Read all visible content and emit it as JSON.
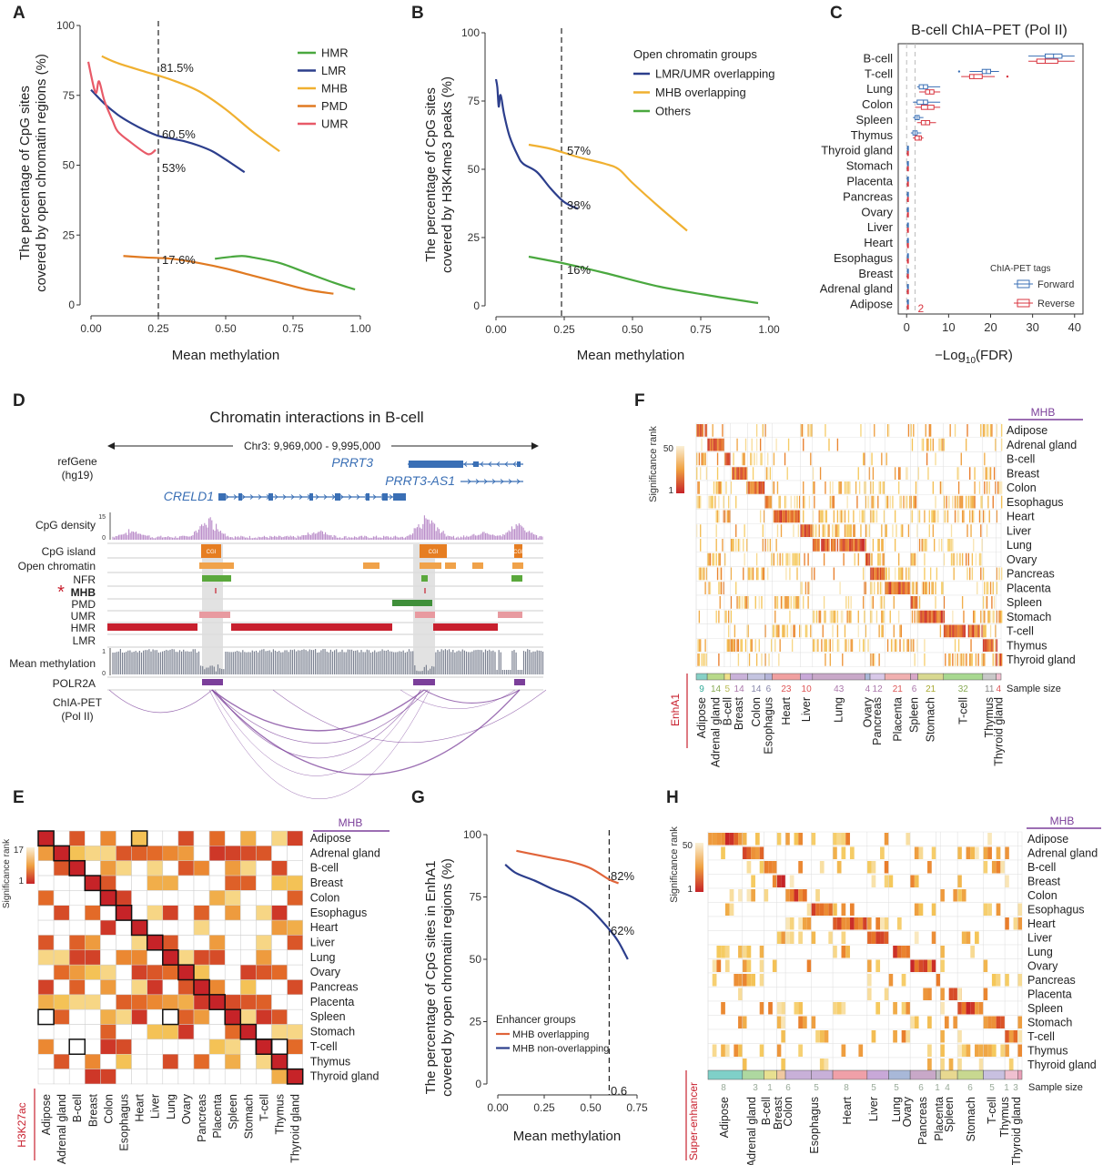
{
  "panels": {
    "A": "A",
    "B": "B",
    "C": "C",
    "D": "D",
    "E": "E",
    "F": "F",
    "G": "G",
    "H": "H"
  },
  "colors": {
    "HMR": "#4aa83f",
    "LMR": "#2c3e8c",
    "MHB": "#f0b030",
    "PMD": "#e07a22",
    "UMR": "#e85a68",
    "forward": "#3a6fb5",
    "reverse": "#d8343f",
    "purple": "#7b3f9a",
    "hmr_track": "#c8202e",
    "nfr": "#5aa83c",
    "pmd_track": "#3f8f3a",
    "umr_track": "#e89aa0",
    "cgi": "#e67e22",
    "density": "#b98ac8",
    "meth": "#7a8090"
  },
  "chart_data": [
    {
      "id": "A",
      "type": "line",
      "xlabel": "Mean methylation",
      "ylabel": "The percentage of CpG sites covered by open chromatin regions (%)",
      "xlim": [
        0,
        1
      ],
      "ylim": [
        0,
        100
      ],
      "xticks": [
        "0.00",
        "0.25",
        "0.50",
        "0.75",
        "1.00"
      ],
      "yticks": [
        "0",
        "25",
        "50",
        "75",
        "100"
      ],
      "vline": 0.25,
      "annotations": [
        "81.5%",
        "60.5%",
        "53%",
        "17.6%"
      ],
      "legend": [
        "HMR",
        "LMR",
        "MHB",
        "PMD",
        "UMR"
      ],
      "series": [
        {
          "name": "MHB",
          "x": [
            0.04,
            0.1,
            0.2,
            0.3,
            0.4,
            0.5,
            0.6,
            0.7
          ],
          "y": [
            89,
            86.5,
            83.5,
            80.5,
            76.5,
            70,
            62,
            55
          ]
        },
        {
          "name": "LMR",
          "x": [
            0,
            0.05,
            0.1,
            0.15,
            0.2,
            0.25,
            0.3,
            0.35,
            0.4,
            0.45,
            0.5,
            0.57
          ],
          "y": [
            77,
            72,
            68,
            65,
            62.5,
            60.5,
            59.5,
            58.5,
            57,
            55,
            52,
            47.5
          ]
        },
        {
          "name": "UMR",
          "x": [
            -0.01,
            0.01,
            0.02,
            0.03,
            0.05,
            0.08,
            0.1,
            0.15,
            0.2,
            0.22,
            0.24
          ],
          "y": [
            87,
            78,
            76,
            80,
            73,
            66,
            62,
            58,
            54.5,
            54,
            55.5
          ]
        },
        {
          "name": "PMD",
          "x": [
            0.12,
            0.2,
            0.25,
            0.3,
            0.4,
            0.5,
            0.6,
            0.7,
            0.8,
            0.9
          ],
          "y": [
            17.5,
            17,
            16.8,
            16.5,
            15,
            13,
            10.5,
            8,
            5.5,
            4
          ]
        },
        {
          "name": "HMR",
          "x": [
            0.46,
            0.5,
            0.56,
            0.6,
            0.7,
            0.8,
            0.9,
            0.98
          ],
          "y": [
            16.5,
            17,
            17.5,
            17,
            15,
            11.5,
            8,
            5.5
          ]
        }
      ]
    },
    {
      "id": "B",
      "type": "line",
      "xlabel": "Mean methylation",
      "ylabel": "The percentage of CpG sites covered by H3K4me3 peaks (%)",
      "xlim": [
        0,
        1
      ],
      "ylim": [
        0,
        100
      ],
      "xticks": [
        "0.00",
        "0.25",
        "0.50",
        "0.75",
        "1.00"
      ],
      "yticks": [
        "0",
        "25",
        "50",
        "75",
        "100"
      ],
      "vline": 0.24,
      "legend_title": "Open chromatin groups",
      "legend": [
        "LMR/UMR overlapping",
        "MHB overlapping",
        "Others"
      ],
      "annotations": [
        "57%",
        "38%",
        "16%"
      ],
      "series": [
        {
          "name": "LMR/UMR overlapping",
          "x": [
            0,
            0.005,
            0.01,
            0.015,
            0.02,
            0.03,
            0.05,
            0.08,
            0.1,
            0.15,
            0.2,
            0.25,
            0.3
          ],
          "y": [
            83,
            80,
            73,
            77,
            76,
            70,
            62,
            55,
            52,
            49,
            43,
            38,
            35.5
          ]
        },
        {
          "name": "MHB overlapping",
          "x": [
            0.12,
            0.2,
            0.3,
            0.4,
            0.45,
            0.5,
            0.6,
            0.7
          ],
          "y": [
            59,
            57.5,
            54.5,
            52,
            50,
            45,
            36,
            27.5
          ]
        },
        {
          "name": "Others",
          "x": [
            0.12,
            0.25,
            0.4,
            0.6,
            0.8,
            0.96
          ],
          "y": [
            18,
            15.5,
            12,
            7,
            3.5,
            1
          ]
        }
      ]
    },
    {
      "id": "C",
      "type": "box",
      "title": "B-cell ChIA−PET (Pol II)",
      "xlabel": "−Log10(FDR)",
      "xlim": [
        -2,
        42
      ],
      "xticks": [
        "0",
        "10",
        "20",
        "30",
        "40"
      ],
      "threshold_label": "2",
      "legend_title": "ChIA-PET tags",
      "legend": [
        "Forward",
        "Reverse"
      ],
      "categories": [
        "B-cell",
        "T-cell",
        "Lung",
        "Colon",
        "Spleen",
        "Thymus",
        "Thyroid gland",
        "Stomach",
        "Placenta",
        "Pancreas",
        "Ovary",
        "Liver",
        "Heart",
        "Esophagus",
        "Breast",
        "Adrenal gland",
        "Adipose"
      ],
      "forward": [
        [
          29,
          33,
          35,
          37,
          40
        ],
        [
          15,
          18,
          19,
          20,
          22
        ],
        [
          2.5,
          3,
          4,
          5,
          8
        ],
        [
          1.5,
          2.5,
          4,
          5,
          8
        ],
        [
          1.5,
          2,
          2.5,
          3,
          4
        ],
        [
          1,
          1.5,
          2,
          2.5,
          3.5
        ],
        [
          0,
          0.2,
          0.3,
          0.4,
          0.5
        ],
        [
          0,
          0.2,
          0.3,
          0.4,
          0.5
        ],
        [
          0,
          0.2,
          0.3,
          0.4,
          0.5
        ],
        [
          0,
          0.2,
          0.3,
          0.4,
          0.5
        ],
        [
          0,
          0.2,
          0.3,
          0.4,
          0.5
        ],
        [
          0,
          0.2,
          0.3,
          0.4,
          0.5
        ],
        [
          0,
          0.2,
          0.3,
          0.4,
          0.5
        ],
        [
          0,
          0.2,
          0.3,
          0.4,
          0.5
        ],
        [
          0,
          0.2,
          0.3,
          0.4,
          0.5
        ],
        [
          0,
          0.2,
          0.3,
          0.4,
          0.5
        ],
        [
          0,
          0.2,
          0.3,
          0.4,
          0.5
        ]
      ],
      "reverse": [
        [
          29,
          31,
          33,
          36,
          40
        ],
        [
          13,
          15,
          16,
          18,
          21
        ],
        [
          3,
          4.5,
          5.5,
          6.5,
          8
        ],
        [
          2,
          3.5,
          5,
          6.5,
          8
        ],
        [
          2.5,
          3.5,
          4.5,
          5.5,
          7
        ],
        [
          1.5,
          2,
          3,
          3.5,
          4
        ],
        [
          0,
          0.2,
          0.3,
          0.4,
          0.5
        ],
        [
          0,
          0.2,
          0.3,
          0.4,
          0.5
        ],
        [
          0,
          0.2,
          0.3,
          0.4,
          0.5
        ],
        [
          0,
          0.2,
          0.3,
          0.4,
          0.5
        ],
        [
          0,
          0.2,
          0.3,
          0.4,
          0.5
        ],
        [
          0,
          0.2,
          0.3,
          0.4,
          0.5
        ],
        [
          0,
          0.2,
          0.3,
          0.4,
          0.5
        ],
        [
          0,
          0.2,
          0.3,
          0.4,
          0.5
        ],
        [
          0,
          0.2,
          0.3,
          0.4,
          0.5
        ],
        [
          0,
          0.2,
          0.3,
          0.4,
          0.5
        ],
        [
          0,
          0.2,
          0.3,
          0.4,
          0.5
        ]
      ]
    },
    {
      "id": "G",
      "type": "line",
      "xlabel": "Mean methylation",
      "ylabel": "The percentage of CpG sites in EnhA1 covered by open chromatin regions (%)",
      "xlim": [
        0,
        0.75
      ],
      "ylim": [
        0,
        100
      ],
      "xticks": [
        "0.00",
        "0.25",
        "0.50",
        "0.75"
      ],
      "yticks": [
        "0",
        "25",
        "50",
        "75",
        "100"
      ],
      "vline": 0.6,
      "vline_label": "0.6",
      "legend_title": "Enhancer groups",
      "legend": [
        "MHB overlapping",
        "MHB non-overlapping"
      ],
      "annotations": [
        "82%",
        "62%"
      ],
      "series": [
        {
          "name": "MHB overlapping",
          "x": [
            0.1,
            0.2,
            0.3,
            0.4,
            0.5,
            0.6,
            0.65
          ],
          "y": [
            93.5,
            92,
            90.5,
            89,
            86.5,
            82,
            80.5
          ]
        },
        {
          "name": "MHB non-overlapping",
          "x": [
            0.04,
            0.1,
            0.2,
            0.3,
            0.4,
            0.5,
            0.6,
            0.65,
            0.7
          ],
          "y": [
            88,
            84.5,
            81.5,
            78,
            75,
            70,
            62,
            57,
            50
          ]
        }
      ]
    }
  ],
  "panel_D": {
    "title": "Chromatin interactions in B-cell",
    "coords": "Chr3: 9,969,000 - 9,995,000",
    "refgene": "refGene",
    "assembly": "(hg19)",
    "genes": [
      "PRRT3",
      "PRRT3-AS1",
      "CRELD1"
    ],
    "density_label": "CpG density",
    "density_max": "15",
    "density_min": "0",
    "tracks": [
      "CpG island",
      "Open chromatin",
      "NFR",
      "MHB",
      "PMD",
      "UMR",
      "HMR",
      "LMR"
    ],
    "cgi": "CGI",
    "star": "*",
    "meth_label": "Mean methylation",
    "meth_max": "1",
    "meth_min": "0",
    "polr2a": "POLR2A",
    "chia": "ChIA-PET",
    "chia2": "(Pol II)"
  },
  "heatmaps": {
    "rows": [
      "Adipose",
      "Adrenal gland",
      "B-cell",
      "Breast",
      "Colon",
      "Esophagus",
      "Heart",
      "Liver",
      "Lung",
      "Ovary",
      "Pancreas",
      "Placenta",
      "Spleen",
      "Stomach",
      "T-cell",
      "Thymus",
      "Thyroid gland"
    ],
    "mhb": "MHB",
    "sig_rank": "Significance rank",
    "E_label": "H3K27ac",
    "E_max": "17",
    "E_min": "1",
    "F_label": "EnhA1",
    "F_max": "50",
    "F_min": "1",
    "F_sizes": [
      "9",
      "14",
      "5",
      "14",
      "14",
      "6",
      "23",
      "10",
      "43",
      "4",
      "12",
      "21",
      "6",
      "21",
      "32",
      "11",
      "4"
    ],
    "H_label": "Super-enhancer",
    "H_max": "50",
    "H_min": "1",
    "H_sizes": [
      "8",
      "3",
      "1",
      "6",
      "5",
      "8",
      "5",
      "5",
      "6",
      "1",
      "4",
      "6",
      "5",
      "1",
      "3"
    ],
    "sample_size": "Sample size"
  }
}
